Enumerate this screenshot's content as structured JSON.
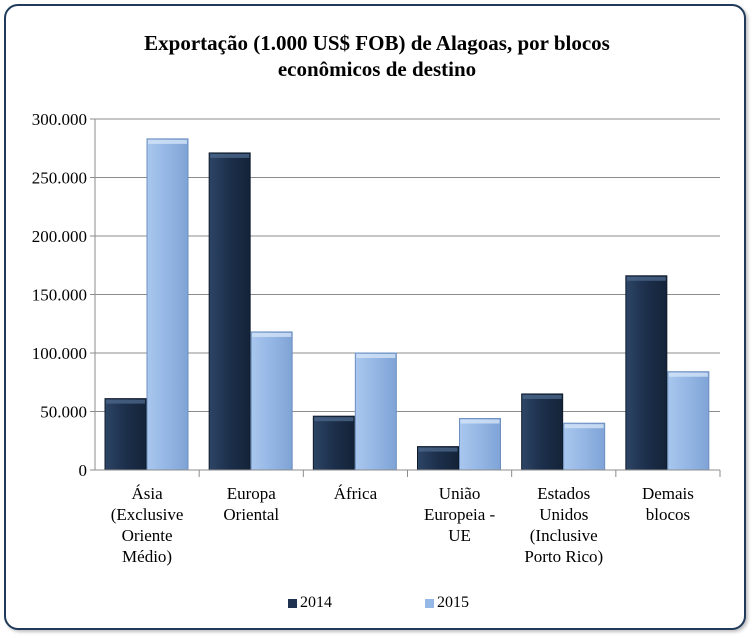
{
  "chart_data": {
    "type": "bar",
    "title": [
      "Exportação (1.000 US$  FOB) de Alagoas, por blocos",
      "econômicos de destino"
    ],
    "categories": [
      [
        "Ásia",
        "(Exclusive",
        "Oriente",
        "Médio)"
      ],
      [
        "Europa",
        "Oriental"
      ],
      [
        "África"
      ],
      [
        "União",
        "Europeia -",
        "UE"
      ],
      [
        "Estados",
        "Unidos",
        "(Inclusive",
        "Porto Rico)"
      ],
      [
        "Demais",
        "blocos"
      ]
    ],
    "series": [
      {
        "name": "2014",
        "values": [
          61000,
          271000,
          46000,
          20000,
          65000,
          166000
        ],
        "color": "#1f3350"
      },
      {
        "name": "2015",
        "values": [
          283000,
          118000,
          100000,
          44000,
          40000,
          84000
        ],
        "color": "#95b8e6"
      }
    ],
    "ylim": [
      0,
      300000
    ],
    "yticks": [
      0,
      50000,
      100000,
      150000,
      200000,
      250000,
      300000
    ],
    "ytick_labels": [
      "0",
      "50.000",
      "100.000",
      "150.000",
      "200.000",
      "250.000",
      "300.000"
    ],
    "grid": true,
    "legend": "bottom"
  }
}
